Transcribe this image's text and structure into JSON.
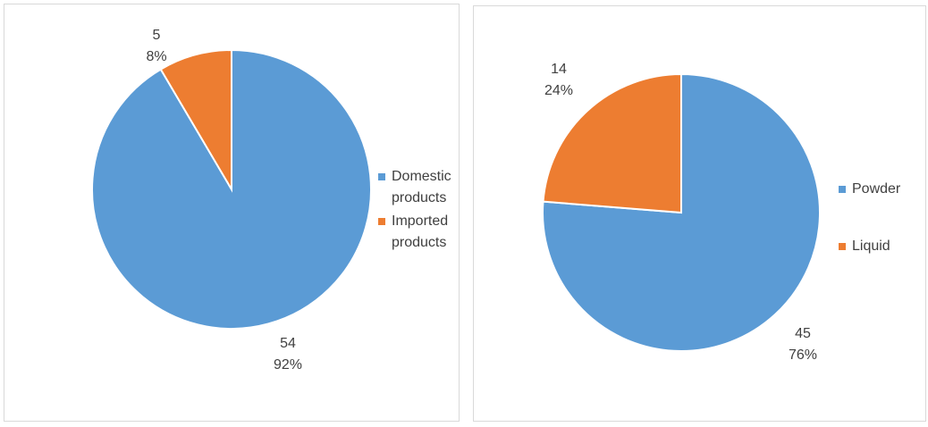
{
  "chart_data": [
    {
      "type": "pie",
      "categories": [
        "Domestic products",
        "Imported products"
      ],
      "values": [
        54,
        5
      ],
      "percent_labels": [
        "92%",
        "8%"
      ],
      "colors": [
        "#5b9bd5",
        "#ed7d31"
      ]
    },
    {
      "type": "pie",
      "categories": [
        "Powder",
        "Liquid"
      ],
      "values": [
        45,
        14
      ],
      "percent_labels": [
        "76%",
        "24%"
      ],
      "colors": [
        "#5b9bd5",
        "#ed7d31"
      ]
    }
  ]
}
